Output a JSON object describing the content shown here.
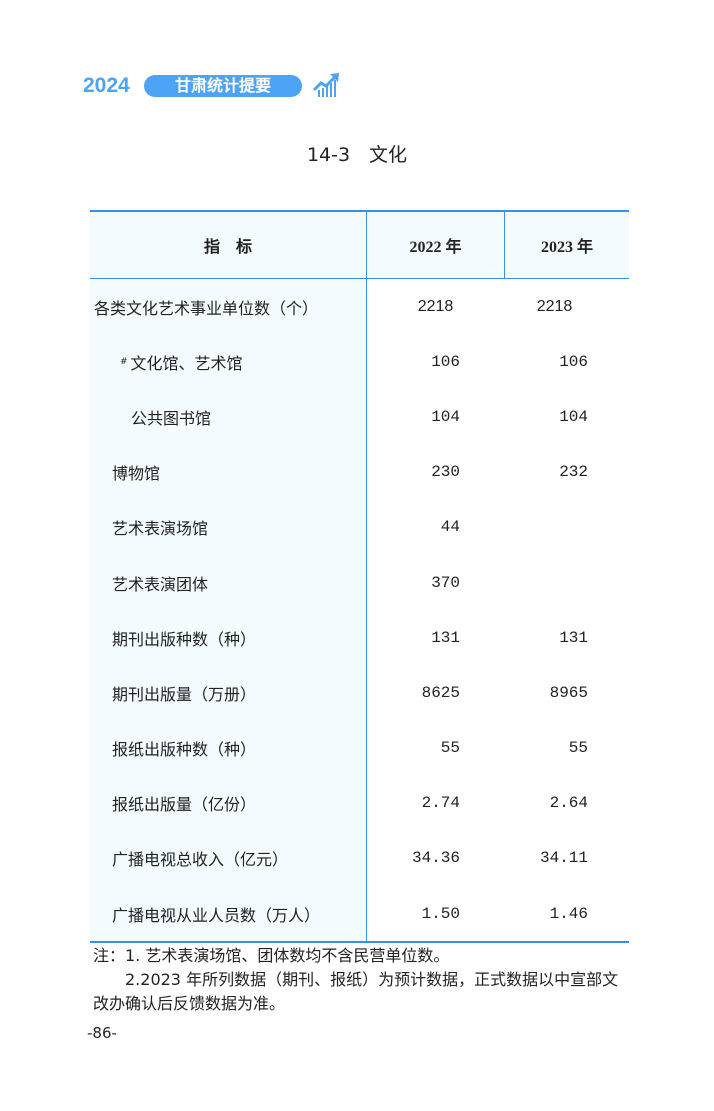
{
  "header": {
    "year": "2024",
    "book_title": "甘肃统计提要",
    "logo_icon": "chart-trend-up-icon",
    "accent": "#4da3f5"
  },
  "title": "14-3　文化",
  "table": {
    "columns": [
      "指　标",
      "2022 年",
      "2023 年"
    ],
    "rows": [
      {
        "label": "各类文化艺术事业单位数（个）",
        "mark": "",
        "v2022": "2218",
        "v2023": "2218"
      },
      {
        "label": "文化馆、艺术馆",
        "mark": "#",
        "v2022": "106",
        "v2023": "106"
      },
      {
        "label": "公共图书馆",
        "mark": "",
        "v2022": "104",
        "v2023": "104"
      },
      {
        "label": "博物馆",
        "mark": "",
        "v2022": "230",
        "v2023": "232"
      },
      {
        "label": "艺术表演场馆",
        "mark": "",
        "v2022": "44",
        "v2023": ""
      },
      {
        "label": "艺术表演团体",
        "mark": "",
        "v2022": "370",
        "v2023": ""
      },
      {
        "label": "期刊出版种数（种）",
        "mark": "",
        "v2022": "131",
        "v2023": "131"
      },
      {
        "label": "期刊出版量（万册）",
        "mark": "",
        "v2022": "8625",
        "v2023": "8965"
      },
      {
        "label": "报纸出版种数（种）",
        "mark": "",
        "v2022": "55",
        "v2023": "55"
      },
      {
        "label": "报纸出版量（亿份）",
        "mark": "",
        "v2022": "2.74",
        "v2023": "2.64"
      },
      {
        "label": "广播电视总收入（亿元）",
        "mark": "",
        "v2022": "34.36",
        "v2023": "34.11"
      },
      {
        "label": "广播电视从业人员数（万人）",
        "mark": "",
        "v2022": "1.50",
        "v2023": "1.46"
      }
    ]
  },
  "notes": [
    "注：1. 艺术表演场馆、团体数均不含民营单位数。",
    "2.2023 年所列数据（期刊、报纸）为预计数据，正式数据以中宣部文改办确认后反馈数据为准。"
  ],
  "page_number": "-86-"
}
